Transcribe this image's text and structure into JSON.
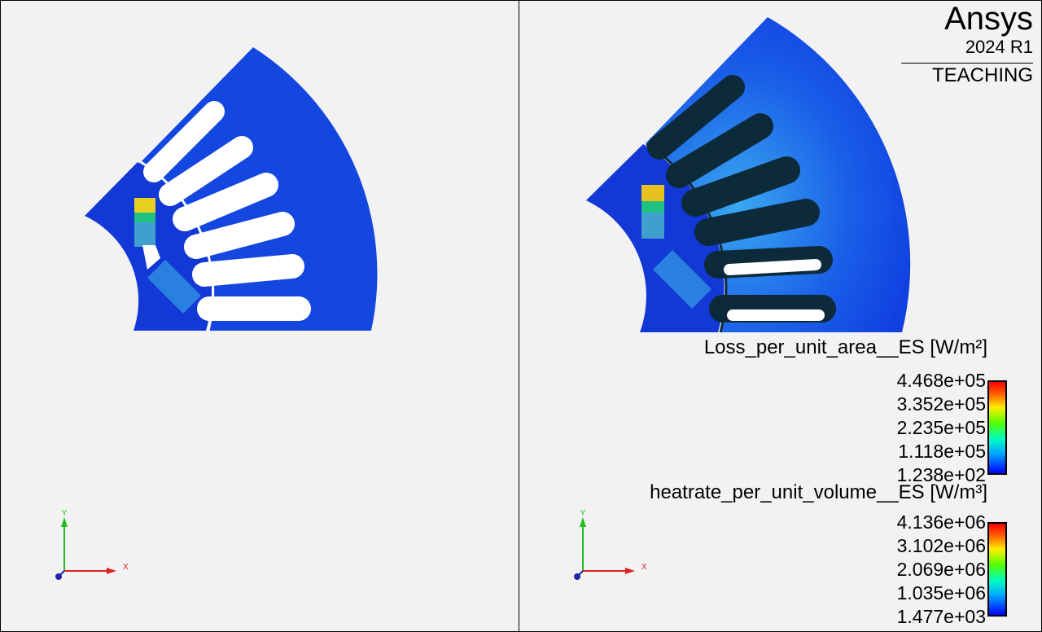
{
  "brand": {
    "name": "Ansys",
    "version": "2024 R1",
    "edition": "TEACHING"
  },
  "legends": [
    {
      "title": "Loss_per_unit_area__ES [W/m²]",
      "values": [
        "4.468e+05",
        "3.352e+05",
        "2.235e+05",
        "1.118e+05",
        "1.238e+02"
      ]
    },
    {
      "title": "heatrate_per_unit_volume__ES [W/m³]",
      "values": [
        "4.136e+06",
        "3.102e+06",
        "2.069e+06",
        "1.035e+06",
        "1.477e+03"
      ]
    }
  ],
  "axes": {
    "x": "X",
    "y": "Y"
  },
  "colors": {
    "field_low": "#1040e0",
    "field_mid": "#3aa8f0",
    "slot_dark": "#0d2a3a",
    "background": "#f2f2f2"
  }
}
